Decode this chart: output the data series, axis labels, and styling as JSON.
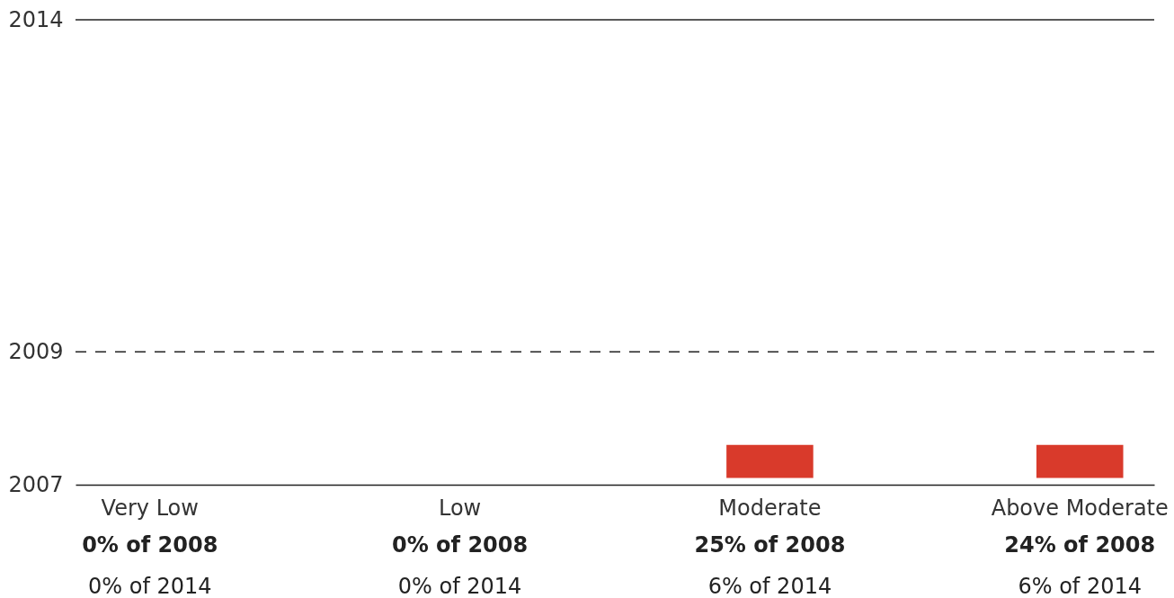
{
  "chart_data": {
    "type": "bar",
    "categories": [
      "Very Low",
      "Low",
      "Moderate",
      "Above Moderate"
    ],
    "values": [
      null,
      null,
      0.5,
      0.5
    ],
    "base": [
      null,
      null,
      2007.1,
      2007.1
    ],
    "color": "#d93a2b",
    "ylim": [
      2007,
      2014
    ],
    "yticks": [
      2007,
      2009,
      2014
    ],
    "grid": false,
    "ref_lines": [
      {
        "axis": "y",
        "value": 2014,
        "line_style": "solid"
      },
      {
        "axis": "y",
        "value": 2009,
        "line_style": "dashed"
      }
    ],
    "annotations": [
      "0% of 2008",
      "0% of 2008",
      "25% of 2008",
      "24% of 2008",
      "0% of 2014",
      "0% of 2014",
      "6% of 2014",
      "6% of 2014"
    ]
  }
}
